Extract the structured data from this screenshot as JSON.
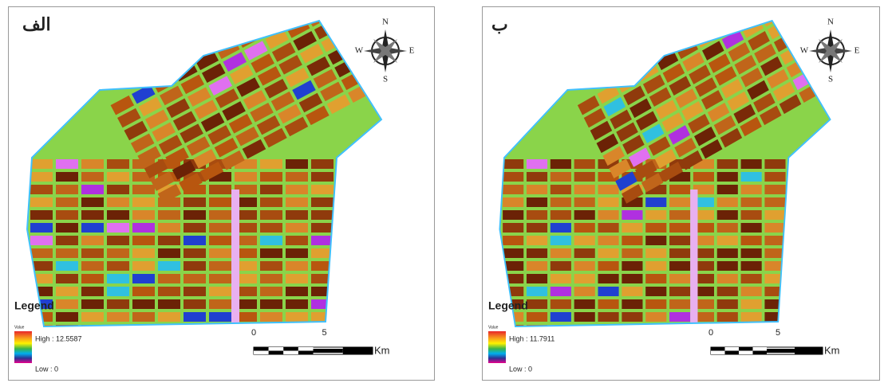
{
  "panels": [
    {
      "label": "الف",
      "compass": {
        "n": "N",
        "e": "E",
        "s": "S",
        "w": "W"
      },
      "legend": {
        "title": "Legend",
        "field": "Value",
        "high": "High : 12.5587",
        "low": "Low : 0"
      },
      "scale": {
        "ticks": [
          "0",
          "5"
        ],
        "unit": "Km"
      }
    },
    {
      "label": "ب",
      "compass": {
        "n": "N",
        "e": "E",
        "s": "S",
        "w": "W"
      },
      "legend": {
        "title": "Legend",
        "field": "Value",
        "high": "High : 11.7911",
        "low": "Low : 0"
      },
      "scale": {
        "ticks": [
          "0",
          "5"
        ],
        "unit": "Km"
      }
    }
  ]
}
